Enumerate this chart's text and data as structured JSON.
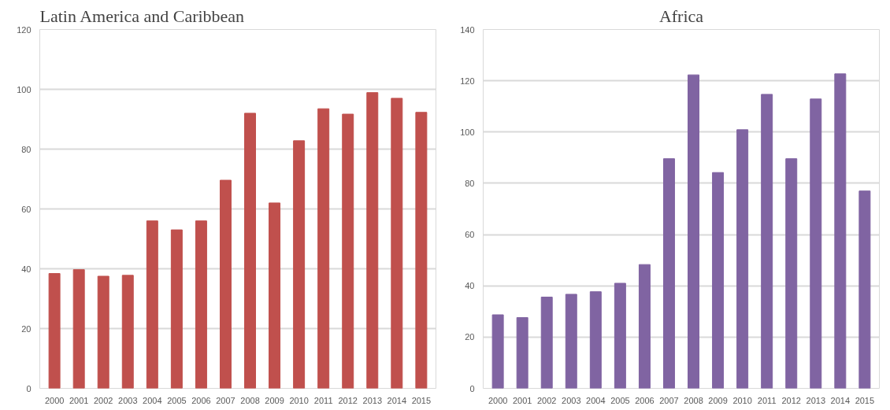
{
  "chart_data": [
    {
      "type": "bar",
      "title": "Latin America and Caribbean",
      "categories": [
        "2000",
        "2001",
        "2002",
        "2003",
        "2004",
        "2005",
        "2006",
        "2007",
        "2008",
        "2009",
        "2010",
        "2011",
        "2012",
        "2013",
        "2014",
        "2015"
      ],
      "series": [
        {
          "color": "#c0504d",
          "values": [
            38.4,
            39.7,
            37.5,
            37.8,
            56,
            53,
            56,
            69.6,
            92,
            62,
            82.8,
            93.5,
            91.7,
            98.9,
            97,
            92.3
          ]
        }
      ],
      "ylim": [
        0,
        120
      ],
      "yticks": [
        0,
        20,
        40,
        60,
        80,
        100,
        120
      ],
      "grid": "y"
    },
    {
      "type": "bar",
      "title": "Africa",
      "categories": [
        "2000",
        "2001",
        "2002",
        "2003",
        "2004",
        "2005",
        "2006",
        "2007",
        "2008",
        "2009",
        "2010",
        "2011",
        "2012",
        "2013",
        "2014",
        "2015"
      ],
      "series": [
        {
          "color": "#8064a2",
          "values": [
            28.7,
            27.6,
            35.6,
            36.7,
            37.7,
            41,
            48.3,
            89.6,
            122.3,
            84.2,
            100.9,
            114.7,
            89.6,
            112.9,
            122.7,
            77
          ]
        }
      ],
      "ylim": [
        0,
        140
      ],
      "yticks": [
        0,
        20,
        40,
        60,
        80,
        100,
        120,
        140
      ],
      "grid": "y"
    }
  ]
}
